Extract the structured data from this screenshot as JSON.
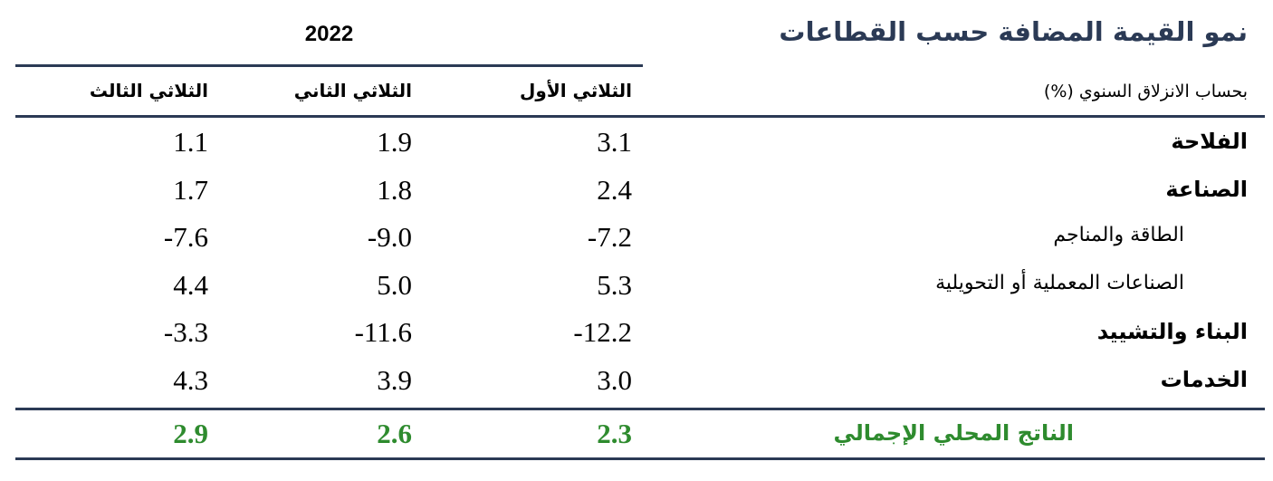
{
  "header": {
    "title": "نمو القيمة المضافة حسب القطاعات",
    "subtitle": "بحساب الانزلاق السنوي (%)",
    "year": "2022"
  },
  "table": {
    "columns": [
      "الثلاثي الأول",
      "الثلاثي الثاني",
      "الثلاثي الثالث"
    ],
    "rows": [
      {
        "label": "الفلاحة",
        "values": [
          "3.1",
          "1.9",
          "1.1"
        ]
      },
      {
        "label": "الصناعة",
        "values": [
          "2.4",
          "1.8",
          "1.7"
        ],
        "subrows": [
          {
            "label": "الطاقة والمناجم",
            "values": [
              "-7.2",
              "-9.0",
              "-7.6"
            ]
          },
          {
            "label": "الصناعات المعملية أو التحويلية",
            "values": [
              "5.3",
              "5.0",
              "4.4"
            ]
          }
        ]
      },
      {
        "label": "البناء والتشييد",
        "values": [
          "-12.2",
          "-11.6",
          "-3.3"
        ]
      },
      {
        "label": "الخدمات",
        "values": [
          "3.0",
          "3.9",
          "4.3"
        ]
      }
    ],
    "total": {
      "label": "الناتج المحلي الإجمالي",
      "values": [
        "2.3",
        "2.6",
        "2.9"
      ]
    }
  }
}
